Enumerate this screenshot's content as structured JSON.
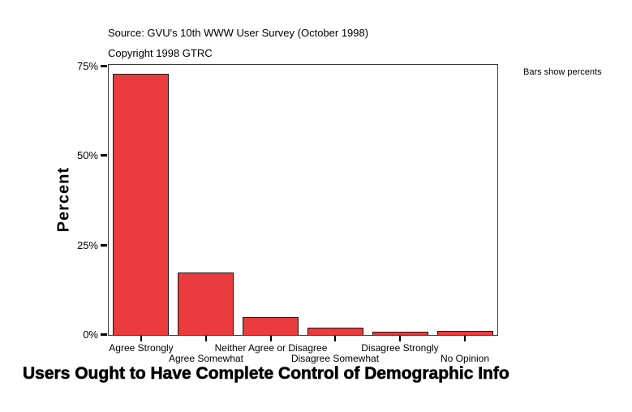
{
  "chart_data": {
    "type": "bar",
    "title": "Users Ought to Have Complete Control of Demographic Info",
    "source_line": "Source: GVU's 10th WWW User Survey (October 1998)",
    "copyright_line": "Copyright 1998 GTRC",
    "note": "Bars show percents",
    "ylabel": "Percent",
    "categories": [
      "Agree Strongly",
      "Agree Somewhat",
      "Neither Agree or Disagree",
      "Disagree Somewhat",
      "Disagree Strongly",
      "No Opinion"
    ],
    "values": [
      73,
      17.5,
      5,
      2,
      1,
      1.2
    ],
    "yticks": [
      0,
      25,
      50,
      75
    ],
    "ytick_labels": [
      "0%",
      "25%",
      "50%",
      "75%"
    ],
    "ylim": [
      0,
      75.5
    ],
    "grid": false,
    "legend_position": "top-right-outside",
    "bar_color": "#EA3B3E",
    "bar_border_color": "#1a1a1a",
    "axis_color": "#3c3c3c",
    "text_color": "#000000",
    "background_color": "#ffffff"
  }
}
